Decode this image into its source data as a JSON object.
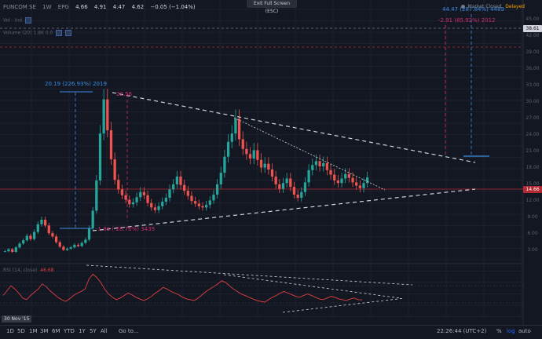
{
  "legend": {
    "symbol": "FUNCOM SE",
    "interval": "1W",
    "exchange": "EPG",
    "open": "4.66",
    "high": "4.91",
    "low": "4.47",
    "close": "4.62",
    "change": "−0.05 (−1.04%)"
  },
  "indicators": {
    "row1": "Vol · Ind",
    "row2": "Volume (20) 1.8K  0.0"
  },
  "fullscreen_label": "Exit Full Screen (ESC)",
  "status": {
    "market": "Market Closed",
    "delayed": "Delayed"
  },
  "price_tags": {
    "top": "38.61",
    "last": "14.66",
    "marks": [
      "45.00",
      "42.00",
      "39.00",
      "36.00",
      "33.00",
      "30.00",
      "27.00",
      "24.00",
      "21.00",
      "18.00",
      "15.00",
      "12.00",
      "9.00",
      "6.00",
      "3.00"
    ]
  },
  "annotations": {
    "left_measure": "20.19 (226.93%) 2019",
    "right_measure": "44.47 (287.84%) 4489",
    "right_measure_pink": "-2.91 (85.92%) 2012",
    "low_pink": "-1.83 (-28.76%) 3439",
    "peak_pink": "22.56"
  },
  "rsi": {
    "label": "RSI (14, close)",
    "value": "46.68"
  },
  "date_label": "30 Nov '15",
  "bottom_bar": {
    "timeframes": [
      "1D",
      "5D",
      "1M",
      "3M",
      "6M",
      "YTD",
      "1Y",
      "5Y",
      "All"
    ],
    "goto": "Go to...",
    "clock": "22:26:44 (UTC+2)",
    "percent": "%",
    "log": "log",
    "auto": "auto"
  },
  "colors": {
    "background": "#131722",
    "up": "#26a69a",
    "down": "#ef5350",
    "measure_blue": "#3b8ee0",
    "measure_pink": "#d12a6b",
    "rsi_line": "#e04040"
  },
  "chart_data": {
    "type": "candlestick",
    "price_series_weekly_close": [
      3.2,
      3.5,
      3.1,
      3.8,
      4.4,
      4.9,
      5.6,
      5.1,
      6.2,
      7.4,
      8.1,
      7.2,
      6.0,
      5.5,
      4.6,
      3.9,
      3.4,
      3.6,
      3.8,
      4.2,
      4.0,
      4.5,
      5.0,
      6.8,
      9.5,
      14.2,
      21.5,
      26.8,
      22.0,
      17.5,
      14.3,
      12.8,
      11.9,
      11.2,
      10.5,
      10.8,
      11.6,
      12.4,
      11.9,
      10.7,
      10.0,
      9.6,
      10.2,
      10.9,
      11.5,
      12.8,
      13.6,
      14.8,
      13.5,
      12.6,
      11.8,
      11.0,
      10.6,
      10.2,
      10.0,
      10.4,
      11.1,
      12.0,
      13.6,
      15.4,
      17.9,
      20.2,
      21.5,
      23.8,
      20.6,
      19.1,
      18.3,
      17.6,
      18.9,
      17.4,
      16.2,
      16.8,
      15.9,
      14.8,
      13.6,
      12.9,
      13.8,
      14.5,
      13.2,
      12.0,
      11.5,
      12.4,
      13.9,
      15.8,
      16.6,
      17.2,
      16.4,
      16.9,
      15.8,
      15.1,
      14.2,
      13.8,
      14.5,
      15.2,
      14.6,
      13.9,
      13.4,
      13.0,
      13.8,
      14.66
    ],
    "rsi_series": [
      52,
      58,
      64,
      60,
      55,
      49,
      47,
      52,
      56,
      60,
      66,
      63,
      58,
      54,
      50,
      47,
      45,
      48,
      52,
      55,
      57,
      60,
      72,
      78,
      74,
      68,
      60,
      54,
      50,
      47,
      49,
      52,
      55,
      53,
      50,
      48,
      46,
      48,
      51,
      55,
      58,
      62,
      60,
      57,
      55,
      53,
      50,
      48,
      47,
      46,
      49,
      53,
      57,
      60,
      63,
      66,
      70,
      68,
      64,
      60,
      57,
      54,
      52,
      50,
      48,
      46,
      45,
      44,
      47,
      50,
      52,
      55,
      57,
      55,
      53,
      51,
      50,
      52,
      54,
      52,
      50,
      48,
      47,
      49,
      51,
      50,
      48,
      47,
      46,
      48,
      49,
      47,
      46.68
    ],
    "x_label": "30 Nov '15"
  }
}
